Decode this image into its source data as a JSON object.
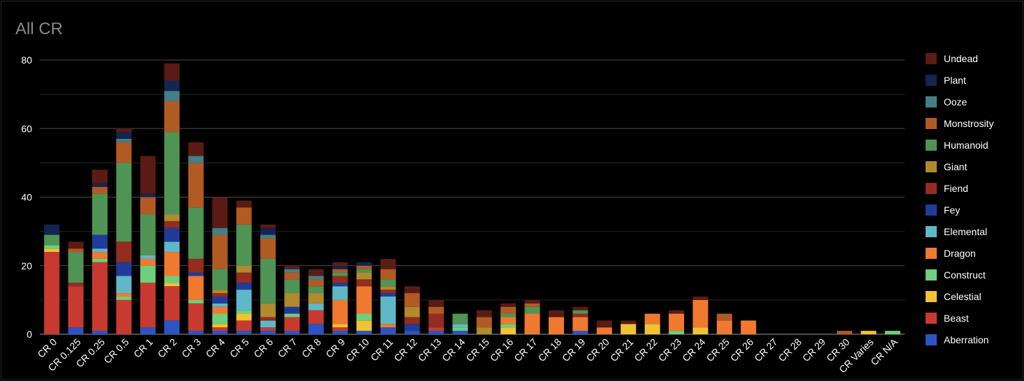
{
  "chart_data": {
    "type": "bar",
    "stacked": true,
    "title": "All CR",
    "xlabel": "",
    "ylabel": "",
    "ylim": [
      0,
      80
    ],
    "yticks": [
      0,
      20,
      40,
      60,
      80
    ],
    "grid": true,
    "legend_position": "right",
    "categories": [
      "CR 0",
      "CR 0.125",
      "CR 0.25",
      "CR 0.5",
      "CR 1",
      "CR 2",
      "CR 3",
      "CR 4",
      "CR 5",
      "CR 6",
      "CR 7",
      "CR 8",
      "CR 9",
      "CR 10",
      "CR 11",
      "CR 12",
      "CR 13",
      "CR 14",
      "CR 15",
      "CR 16",
      "CR 17",
      "CR 18",
      "CR 19",
      "CR 20",
      "CR 21",
      "CR 22",
      "CR 23",
      "CR 24",
      "CR 25",
      "CR 26",
      "CR 27",
      "CR 28",
      "CR 29",
      "CR 30",
      "CR Varies",
      "CR N/A"
    ],
    "series": [
      {
        "name": "Aberration",
        "color": "#2b55c4",
        "values": [
          0,
          2,
          1,
          0,
          2,
          4,
          1,
          1,
          1,
          1,
          1,
          3,
          1,
          1,
          2,
          1,
          1,
          1,
          0,
          0,
          0,
          0,
          1,
          0,
          0,
          0,
          0,
          0,
          0,
          0,
          0,
          0,
          0,
          0,
          0,
          0
        ]
      },
      {
        "name": "Beast",
        "color": "#c83a30",
        "values": [
          24,
          12,
          20,
          10,
          13,
          10,
          8,
          1,
          3,
          1,
          4,
          4,
          1,
          0,
          0,
          0,
          1,
          0,
          0,
          0,
          0,
          0,
          0,
          0,
          0,
          0,
          0,
          0,
          0,
          0,
          0,
          0,
          0,
          0,
          0,
          0
        ]
      },
      {
        "name": "Celestial",
        "color": "#f1c232",
        "values": [
          1,
          0,
          0,
          0,
          0,
          1,
          0,
          1,
          2,
          0,
          0,
          0,
          1,
          3,
          0,
          0,
          0,
          0,
          0,
          2,
          0,
          0,
          0,
          0,
          3,
          3,
          0,
          2,
          0,
          0,
          0,
          0,
          0,
          0,
          1,
          0
        ]
      },
      {
        "name": "Construct",
        "color": "#6fcf7a",
        "values": [
          1,
          0,
          1,
          1,
          5,
          2,
          1,
          3,
          1,
          0,
          1,
          0,
          0,
          2,
          0,
          0,
          0,
          1,
          0,
          1,
          0,
          0,
          0,
          0,
          0,
          0,
          1,
          0,
          0,
          0,
          0,
          0,
          0,
          0,
          0,
          1
        ]
      },
      {
        "name": "Dragon",
        "color": "#ef7a2f",
        "values": [
          0,
          0,
          2,
          1,
          2,
          7,
          7,
          2,
          0,
          0,
          0,
          0,
          7,
          8,
          1,
          0,
          0,
          0,
          0,
          2,
          6,
          5,
          4,
          2,
          0,
          3,
          5,
          8,
          4,
          4,
          0,
          0,
          0,
          0,
          0,
          0
        ]
      },
      {
        "name": "Elemental",
        "color": "#5fb8c7",
        "values": [
          0,
          0,
          1,
          5,
          1,
          3,
          0,
          1,
          6,
          2,
          0,
          2,
          4,
          0,
          8,
          0,
          0,
          1,
          0,
          0,
          0,
          0,
          0,
          0,
          0,
          0,
          0,
          0,
          0,
          0,
          0,
          0,
          0,
          0,
          0,
          0
        ]
      },
      {
        "name": "Fey",
        "color": "#1f3c9a",
        "values": [
          0,
          0,
          4,
          4,
          0,
          4,
          1,
          2,
          2,
          0,
          2,
          0,
          1,
          0,
          1,
          2,
          0,
          0,
          0,
          0,
          0,
          0,
          0,
          0,
          0,
          0,
          0,
          0,
          0,
          0,
          0,
          0,
          0,
          0,
          0,
          0
        ]
      },
      {
        "name": "Fiend",
        "color": "#922d20",
        "values": [
          0,
          1,
          0,
          6,
          0,
          2,
          4,
          1,
          3,
          1,
          0,
          0,
          2,
          2,
          1,
          2,
          4,
          0,
          0,
          0,
          0,
          0,
          1,
          0,
          0,
          0,
          0,
          0,
          0,
          0,
          0,
          0,
          0,
          0,
          0,
          0
        ]
      },
      {
        "name": "Giant",
        "color": "#b08a2c",
        "values": [
          0,
          0,
          0,
          0,
          0,
          2,
          0,
          1,
          2,
          4,
          4,
          3,
          0,
          2,
          1,
          3,
          0,
          0,
          2,
          0,
          0,
          0,
          0,
          0,
          0,
          0,
          0,
          0,
          0,
          0,
          0,
          0,
          0,
          0,
          0,
          0
        ]
      },
      {
        "name": "Humanoid",
        "color": "#4f9454",
        "values": [
          3,
          9,
          12,
          23,
          12,
          24,
          15,
          6,
          12,
          13,
          4,
          2,
          1,
          1,
          2,
          0,
          0,
          3,
          0,
          1,
          2,
          0,
          1,
          0,
          0,
          0,
          0,
          0,
          0,
          0,
          0,
          0,
          0,
          0,
          0,
          0
        ]
      },
      {
        "name": "Monstrosity",
        "color": "#b25a24",
        "values": [
          0,
          1,
          2,
          6,
          5,
          9,
          13,
          10,
          5,
          6,
          2,
          2,
          1,
          1,
          3,
          4,
          2,
          0,
          3,
          2,
          1,
          0,
          0,
          0,
          0,
          0,
          0,
          0,
          2,
          0,
          0,
          0,
          0,
          1,
          0,
          0
        ]
      },
      {
        "name": "Ooze",
        "color": "#437f87",
        "values": [
          0,
          0,
          0,
          1,
          0,
          3,
          2,
          2,
          0,
          1,
          1,
          1,
          0,
          0,
          0,
          0,
          0,
          0,
          0,
          0,
          0,
          0,
          0,
          0,
          0,
          0,
          0,
          0,
          0,
          0,
          0,
          0,
          0,
          0,
          0,
          0
        ]
      },
      {
        "name": "Plant",
        "color": "#132550",
        "values": [
          3,
          0,
          1,
          2,
          1,
          3,
          0,
          0,
          0,
          2,
          0,
          0,
          1,
          1,
          0,
          0,
          0,
          0,
          0,
          0,
          0,
          0,
          0,
          0,
          0,
          0,
          0,
          0,
          0,
          0,
          0,
          0,
          0,
          0,
          0,
          0
        ]
      },
      {
        "name": "Undead",
        "color": "#5a1b14",
        "values": [
          0,
          2,
          4,
          1,
          11,
          5,
          4,
          9,
          2,
          1,
          1,
          2,
          1,
          0,
          3,
          2,
          2,
          0,
          2,
          1,
          1,
          2,
          1,
          2,
          1,
          0,
          1,
          1,
          0,
          0,
          0,
          0,
          0,
          0,
          0,
          0
        ]
      }
    ]
  }
}
